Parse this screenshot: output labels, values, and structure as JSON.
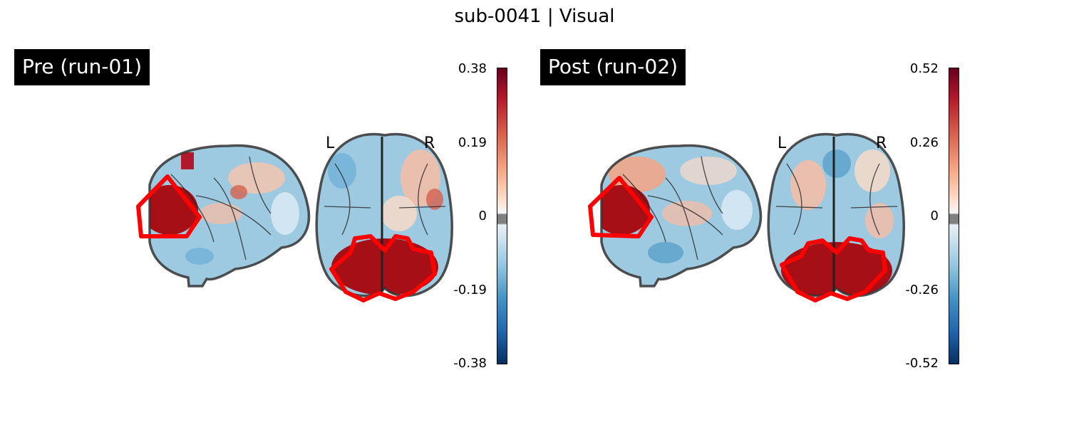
{
  "title": "sub-0041 | Visual",
  "panels": [
    {
      "label": "Pre (run-01)",
      "left_marker": "L",
      "right_marker": "R",
      "colorbar_ticks": [
        "0.38",
        "0.19",
        "0",
        "-0.19",
        "-0.38"
      ]
    },
    {
      "label": "Post (run-02)",
      "left_marker": "L",
      "right_marker": "R",
      "colorbar_ticks": [
        "0.52",
        "0.26",
        "0",
        "-0.26",
        "-0.52"
      ]
    }
  ],
  "colors": {
    "roi_outline": "#ff0000",
    "positive_max": "#67001f",
    "negative_max": "#053061",
    "label_background": "#000000"
  }
}
